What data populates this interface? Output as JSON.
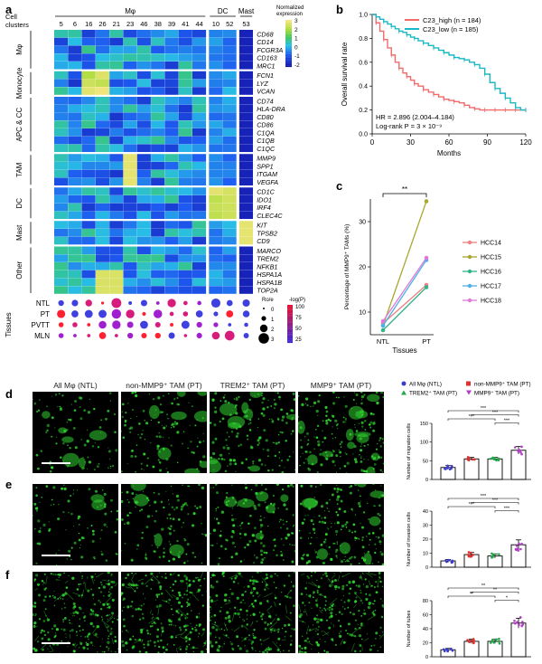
{
  "panels": {
    "a": "a",
    "b": "b",
    "c": "c",
    "d": "d",
    "e": "e",
    "f": "f"
  },
  "heatmap": {
    "cell_clusters_label": "Cell clusters",
    "groups": [
      {
        "name": "Mφ",
        "clusters": [
          "5",
          "6",
          "16",
          "26",
          "21",
          "23",
          "46",
          "38",
          "39",
          "41",
          "44"
        ]
      },
      {
        "name": "DC",
        "clusters": [
          "10",
          "52"
        ]
      },
      {
        "name": "Mast",
        "clusters": [
          "53"
        ]
      }
    ],
    "row_groups": [
      {
        "name": "Mφ",
        "genes": [
          "CD68",
          "CD14",
          "FCGR3A",
          "CD163",
          "MRC1"
        ]
      },
      {
        "name": "Monocyte",
        "genes": [
          "FCN1",
          "LYZ",
          "VCAN"
        ]
      },
      {
        "name": "APC & CC",
        "genes": [
          "CD74",
          "HLA-DRA",
          "CD80",
          "CD86",
          "C1QA",
          "C1QB",
          "C1QC"
        ]
      },
      {
        "name": "TAM",
        "genes": [
          "MMP9",
          "SPP1",
          "ITGAM",
          "VEGFA"
        ]
      },
      {
        "name": "DC",
        "genes": [
          "CD1C",
          "IDO1",
          "IRF4",
          "CLEC4C"
        ]
      },
      {
        "name": "Mast",
        "genes": [
          "KIT",
          "TPSB2",
          "CD9"
        ]
      },
      {
        "name": "Other",
        "genes": [
          "MARCO",
          "TREM2",
          "NFKB1",
          "HSPA1A",
          "HSPA1B",
          "TOP2A"
        ]
      }
    ],
    "colorbar_title": "Normalized expression",
    "colorbar_ticks": [
      "3",
      "2",
      "1",
      "0",
      "-1",
      "-2"
    ],
    "tissues_label": "Tissues",
    "tissues": [
      "NTL",
      "PT",
      "PVTT",
      "MLN"
    ],
    "size_legend_title": "Ro/e",
    "size_legend_values": [
      "0",
      "1",
      "2",
      "3"
    ],
    "color_legend_title": "-log(P)",
    "color_legend_values": [
      "100",
      "75",
      "50",
      "25"
    ]
  },
  "chart_data": [
    {
      "type": "line",
      "title": "",
      "xlabel": "Months",
      "ylabel": "Overall survival rate",
      "xlim": [
        0,
        120
      ],
      "ylim": [
        0,
        1.0
      ],
      "xticks": [
        "0",
        "30",
        "60",
        "90",
        "120"
      ],
      "yticks": [
        "0.0",
        "0.2",
        "0.4",
        "0.6",
        "0.8",
        "1.0"
      ],
      "series": [
        {
          "name": "C23_high (n = 184)",
          "color": "#f26b6b",
          "x": [
            0,
            3,
            6,
            9,
            12,
            15,
            18,
            21,
            24,
            27,
            30,
            33,
            36,
            40,
            44,
            48,
            52,
            56,
            60,
            64,
            68,
            72,
            76,
            80,
            84,
            88,
            92,
            96,
            100,
            104,
            108,
            112,
            116,
            120
          ],
          "y": [
            1.0,
            0.93,
            0.86,
            0.79,
            0.72,
            0.66,
            0.6,
            0.55,
            0.51,
            0.48,
            0.45,
            0.42,
            0.4,
            0.37,
            0.35,
            0.33,
            0.31,
            0.29,
            0.28,
            0.27,
            0.26,
            0.24,
            0.22,
            0.21,
            0.2,
            0.2,
            0.2,
            0.2,
            0.2,
            0.2,
            0.2,
            0.2,
            0.2,
            0.2
          ]
        },
        {
          "name": "C23_low (n = 185)",
          "color": "#1ab8c4",
          "x": [
            0,
            3,
            6,
            9,
            12,
            15,
            18,
            21,
            24,
            27,
            30,
            33,
            36,
            40,
            44,
            48,
            52,
            56,
            60,
            64,
            68,
            72,
            76,
            80,
            84,
            88,
            92,
            96,
            100,
            104,
            108,
            112,
            116,
            120
          ],
          "y": [
            1.0,
            0.98,
            0.96,
            0.94,
            0.92,
            0.9,
            0.88,
            0.86,
            0.85,
            0.83,
            0.81,
            0.8,
            0.78,
            0.76,
            0.74,
            0.72,
            0.7,
            0.68,
            0.66,
            0.64,
            0.63,
            0.62,
            0.6,
            0.58,
            0.55,
            0.5,
            0.43,
            0.38,
            0.34,
            0.3,
            0.26,
            0.22,
            0.2,
            0.2
          ]
        }
      ],
      "annotations": [
        "HR = 2.896 (2.004–4.184)",
        "Log-rank P = 3 × 10⁻⁹"
      ]
    },
    {
      "type": "line",
      "xlabel": "Tissues",
      "ylabel": "Percentage of MMP9⁺ TAMs (%)",
      "categories": [
        "NTL",
        "PT"
      ],
      "ylim": [
        5,
        35
      ],
      "yticks": [
        "10",
        "20",
        "30"
      ],
      "significance": "**",
      "series": [
        {
          "name": "HCC14",
          "color": "#f08080",
          "values": [
            7.5,
            16.0
          ]
        },
        {
          "name": "HCC15",
          "color": "#a8a832",
          "values": [
            7.0,
            34.5
          ]
        },
        {
          "name": "HCC16",
          "color": "#33b38a",
          "values": [
            6.0,
            15.5
          ]
        },
        {
          "name": "HCC17",
          "color": "#4fb0e8",
          "values": [
            7.0,
            21.5
          ]
        },
        {
          "name": "HCC18",
          "color": "#e07ad8",
          "values": [
            8.0,
            22.0
          ]
        }
      ]
    },
    {
      "type": "bar",
      "ylabel": "Number of migration cells",
      "categories": [
        "All Mφ (NTL)",
        "non-MMP9⁺ TAM (PT)",
        "TREM2⁺ TAM (PT)",
        "MMP9⁺ TAM (PT)"
      ],
      "values": [
        32,
        55,
        55,
        78
      ],
      "errors": [
        5,
        4,
        4,
        10
      ],
      "ylim": [
        0,
        150
      ],
      "yticks": [
        "0",
        "50",
        "100",
        "150"
      ],
      "significance": [
        "***",
        "***",
        "***",
        "***"
      ]
    },
    {
      "type": "bar",
      "ylabel": "Number of invasion cells",
      "categories": [
        "All Mφ (NTL)",
        "non-MMP9⁺ TAM (PT)",
        "TREM2⁺ TAM (PT)",
        "MMP9⁺ TAM (PT)"
      ],
      "values": [
        4.5,
        9,
        8,
        16
      ],
      "errors": [
        1,
        1.5,
        1.5,
        3.5
      ],
      "ylim": [
        0,
        40
      ],
      "yticks": [
        "0",
        "10",
        "20",
        "30",
        "40"
      ],
      "significance": [
        "***",
        "***",
        "***",
        "***"
      ]
    },
    {
      "type": "bar",
      "ylabel": "Number of tubes",
      "categories": [
        "All Mφ (NTL)",
        "non-MMP9⁺ TAM (PT)",
        "TREM2⁺ TAM (PT)",
        "MMP9⁺ TAM (PT)"
      ],
      "values": [
        10,
        22,
        22,
        48
      ],
      "errors": [
        2,
        3,
        3,
        7
      ],
      "ylim": [
        0,
        80
      ],
      "yticks": [
        "0",
        "20",
        "40",
        "60",
        "80"
      ],
      "significance": [
        "**",
        "**",
        "**",
        "*",
        "**"
      ]
    }
  ],
  "panel_b": {
    "legend_high": "C23_high (n = 184)",
    "legend_low": "C23_low (n = 185)",
    "hr": "HR = 2.896 (2.004–4.184)",
    "logrank": "Log-rank P = 3 × 10⁻⁹",
    "xlabel": "Months",
    "ylabel": "Overall survival rate"
  },
  "panel_c": {
    "xlabel": "Tissues",
    "ylabel": "Percentage of MMP9⁺ TAMs (%)",
    "sig": "**"
  },
  "panel_d": {
    "columns": [
      "All Mφ (NTL)",
      "non-MMP9⁺ TAM (PT)",
      "TREM2⁺ TAM (PT)",
      "MMP9⁺ TAM (PT)"
    ],
    "legend": [
      "All Mφ (NTL)",
      "non-MMP9⁺ TAM (PT)",
      "TREM2⁺ TAM (PT)",
      "MMP9⁺ TAM (PT)"
    ],
    "ylabel_d": "Number of migration cells",
    "ylabel_e": "Number of invasion cells",
    "ylabel_f": "Number of tubes"
  },
  "colors": {
    "micro_green": "#2fd12f",
    "bar_blue": "#3b3bd0",
    "bar_red": "#e03030",
    "bar_green": "#22a84a",
    "bar_purple": "#b43cc8"
  }
}
